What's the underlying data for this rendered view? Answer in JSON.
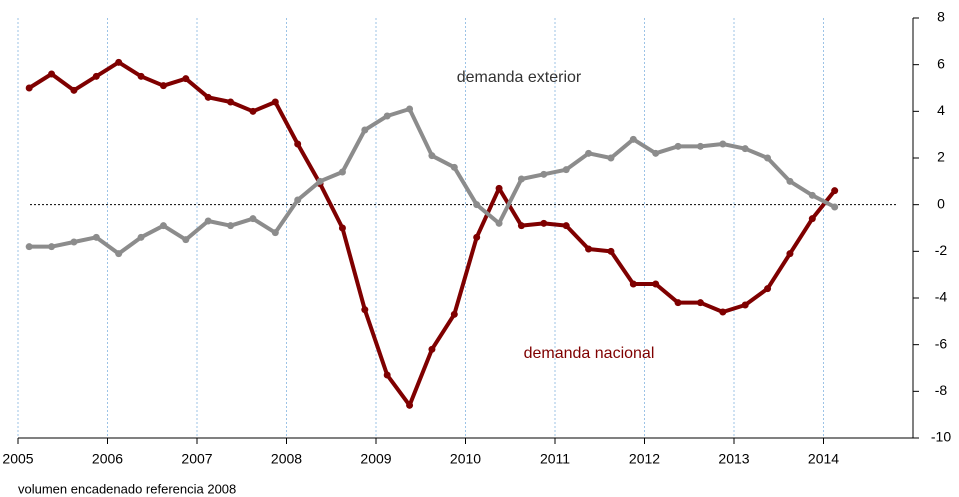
{
  "chart_data": {
    "type": "line",
    "x": [
      2005.125,
      2005.375,
      2005.625,
      2005.875,
      2006.125,
      2006.375,
      2006.625,
      2006.875,
      2007.125,
      2007.375,
      2007.625,
      2007.875,
      2008.125,
      2008.375,
      2008.625,
      2008.875,
      2009.125,
      2009.375,
      2009.625,
      2009.875,
      2010.125,
      2010.375,
      2010.625,
      2010.875,
      2011.125,
      2011.375,
      2011.625,
      2011.875,
      2012.125,
      2012.375,
      2012.625,
      2012.875,
      2013.125,
      2013.375,
      2013.625,
      2013.875,
      2014.125
    ],
    "series": [
      {
        "name": "demanda nacional",
        "color": "#7f0000",
        "values": [
          5.0,
          5.6,
          4.9,
          5.5,
          6.1,
          5.5,
          5.1,
          5.4,
          4.6,
          4.4,
          4.0,
          4.4,
          2.6,
          0.9,
          -1.0,
          -4.5,
          -7.3,
          -8.6,
          -6.2,
          -4.7,
          -1.4,
          0.7,
          -0.9,
          -0.8,
          -0.9,
          -1.9,
          -2.0,
          -3.4,
          -3.4,
          -4.2,
          -4.2,
          -4.6,
          -4.3,
          -3.6,
          -2.1,
          -0.6,
          0.6
        ]
      },
      {
        "name": "demanda exterior",
        "color": "#8c8c8c",
        "values": [
          -1.8,
          -1.8,
          -1.6,
          -1.4,
          -2.1,
          -1.4,
          -0.9,
          -1.5,
          -0.7,
          -0.9,
          -0.6,
          -1.2,
          0.2,
          1.0,
          1.4,
          3.2,
          3.8,
          4.1,
          2.1,
          1.6,
          0.0,
          -0.8,
          1.1,
          1.3,
          1.5,
          2.2,
          2.0,
          2.8,
          2.2,
          2.5,
          2.5,
          2.6,
          2.4,
          2.0,
          1.0,
          0.4,
          -0.1
        ]
      }
    ],
    "xlim": [
      2005,
      2015
    ],
    "xticks": [
      2005,
      2006,
      2007,
      2008,
      2009,
      2010,
      2011,
      2012,
      2013,
      2014
    ],
    "ylim": [
      -10,
      8
    ],
    "yticks": [
      -10,
      -8,
      -6,
      -4,
      -2,
      0,
      2,
      4,
      6,
      8
    ],
    "grid": true,
    "footnote": "volumen  encadenado  referencia 2008"
  }
}
